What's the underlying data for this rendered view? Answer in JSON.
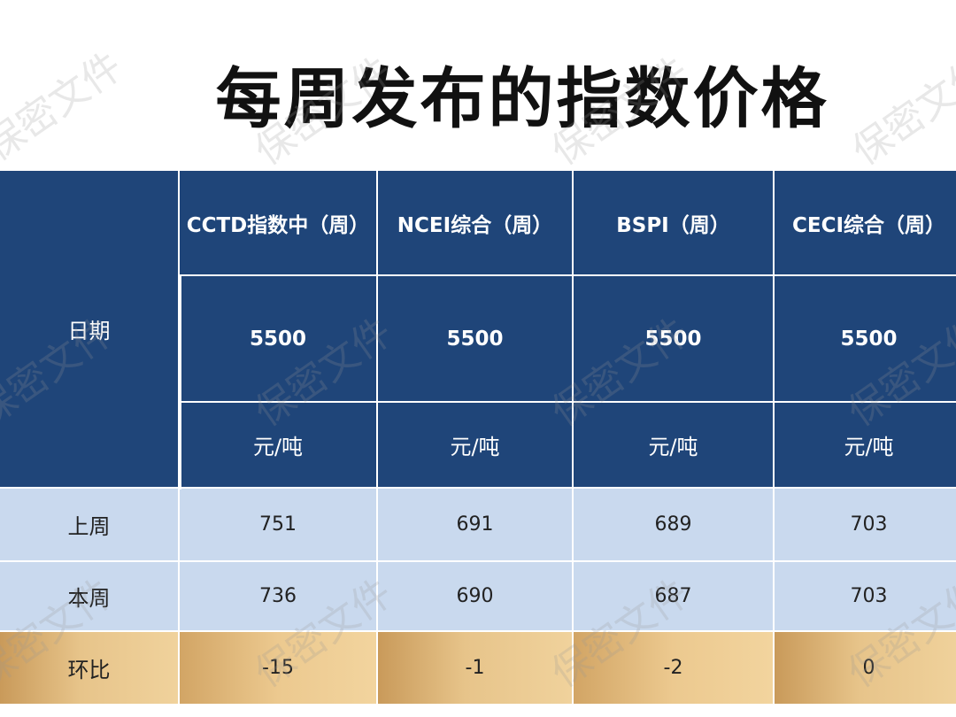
{
  "title": "每周发布的指数价格",
  "watermark": "保密文件",
  "table": {
    "date_label": "日期",
    "columns": [
      {
        "name": "CCTD指数中（周）",
        "grade": "5500",
        "unit": "元/吨"
      },
      {
        "name": "NCEI综合（周）",
        "grade": "5500",
        "unit": "元/吨"
      },
      {
        "name": "BSPI（周）",
        "grade": "5500",
        "unit": "元/吨"
      },
      {
        "name": "CECI综合（周）",
        "grade": "5500",
        "unit": "元/吨"
      }
    ],
    "rows": [
      {
        "label": "上周",
        "values": [
          "751",
          "691",
          "689",
          "703"
        ]
      },
      {
        "label": "本周",
        "values": [
          "736",
          "690",
          "687",
          "703"
        ]
      },
      {
        "label": "环比",
        "values": [
          "-15",
          "-1",
          "-2",
          "0"
        ]
      }
    ]
  },
  "colors": {
    "header_bg": "#1f4579",
    "row_bg": "#c9d9ee",
    "change_row_bg": "#e7c48a"
  }
}
